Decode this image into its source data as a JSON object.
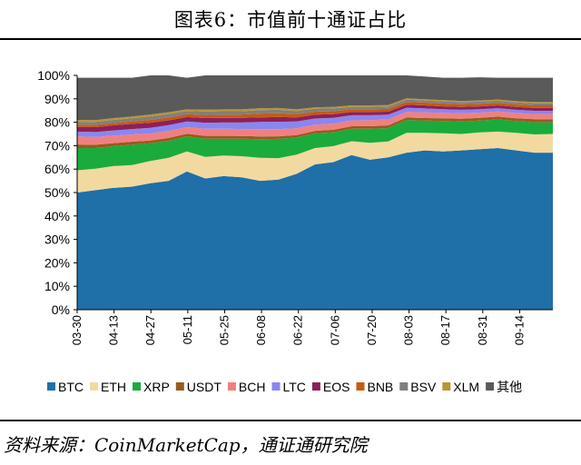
{
  "title": "图表6：市值前十通证占比",
  "source": "资料来源：CoinMarketCap，通证通研究院",
  "chart_data": {
    "type": "area",
    "stacked": true,
    "y_format": "percent",
    "ylim": [
      0,
      100
    ],
    "y_ticks": [
      0,
      10,
      20,
      30,
      40,
      50,
      60,
      70,
      80,
      90,
      100
    ],
    "y_tick_labels": [
      "0%",
      "10%",
      "20%",
      "30%",
      "40%",
      "50%",
      "60%",
      "70%",
      "80%",
      "90%",
      "100%"
    ],
    "x_tick_labels": [
      "03-30",
      "04-13",
      "04-27",
      "05-11",
      "05-25",
      "06-08",
      "06-22",
      "07-06",
      "07-20",
      "08-03",
      "08-17",
      "08-31",
      "09-14"
    ],
    "x_tick_index": [
      0,
      1,
      2,
      3,
      4,
      5,
      6,
      7,
      8,
      9,
      10,
      11,
      12
    ],
    "x_extra_after_last": 0.9,
    "legend_position": "bottom",
    "x": [
      "03-30",
      "04-06",
      "04-13",
      "04-20",
      "04-27",
      "05-04",
      "05-11",
      "05-18",
      "05-25",
      "06-01",
      "06-08",
      "06-15",
      "06-22",
      "06-29",
      "07-06",
      "07-13",
      "07-20",
      "07-27",
      "08-03",
      "08-10",
      "08-17",
      "08-24",
      "08-31",
      "09-07",
      "09-14",
      "09-21",
      "09-27"
    ],
    "series": [
      {
        "name": "BTC",
        "color": "#1f6fa8",
        "values": [
          50,
          51,
          52,
          52.5,
          54,
          55,
          59,
          56,
          57,
          56.5,
          55,
          55.5,
          58,
          62,
          63,
          66,
          64,
          65,
          67,
          68,
          67.5,
          68,
          68.5,
          69,
          68,
          67,
          67
        ]
      },
      {
        "name": "ETH",
        "color": "#f2d9a0",
        "values": [
          9.5,
          9.2,
          9.3,
          9.2,
          9.5,
          9.8,
          8.5,
          9.2,
          8.8,
          9.0,
          9.8,
          9.2,
          8.2,
          7.0,
          6.8,
          5.9,
          7.2,
          6.8,
          8.5,
          7.5,
          7.8,
          7.0,
          7.2,
          7.0,
          7.5,
          7.8,
          8.0
        ]
      },
      {
        "name": "XRP",
        "color": "#1aab3c",
        "values": [
          9.5,
          8.8,
          8.5,
          8.7,
          7.5,
          7.3,
          6.5,
          7.8,
          7.2,
          7.5,
          8.0,
          8.2,
          7.3,
          6.3,
          5.9,
          5.3,
          6.0,
          5.7,
          5.5,
          5.2,
          5.3,
          5.3,
          5.0,
          5.2,
          5.0,
          5.2,
          5.0
        ]
      },
      {
        "name": "USDT",
        "color": "#9a5a1c",
        "values": [
          1.5,
          1.4,
          1.3,
          1.3,
          1.2,
          1.2,
          1.1,
          1.2,
          1.2,
          1.1,
          1.1,
          1.1,
          1.0,
          1.0,
          1.1,
          1.1,
          1.1,
          1.2,
          1.0,
          1.1,
          1.1,
          1.2,
          1.2,
          1.2,
          1.2,
          1.3,
          1.3
        ]
      },
      {
        "name": "BCH",
        "color": "#f08080",
        "values": [
          3.5,
          3.3,
          3.2,
          3.1,
          3.0,
          3.0,
          2.8,
          3.0,
          3.0,
          3.0,
          3.1,
          3.1,
          2.9,
          2.7,
          2.6,
          2.5,
          2.6,
          2.5,
          2.4,
          2.4,
          2.3,
          2.3,
          2.2,
          2.2,
          2.2,
          2.2,
          2.2
        ]
      },
      {
        "name": "LTC",
        "color": "#8a86f0",
        "values": [
          2.0,
          2.1,
          2.2,
          2.3,
          2.4,
          2.5,
          2.4,
          2.6,
          2.7,
          2.8,
          3.1,
          3.1,
          2.9,
          2.6,
          2.5,
          2.2,
          2.1,
          2.0,
          1.8,
          1.7,
          1.6,
          1.5,
          1.5,
          1.4,
          1.4,
          1.4,
          1.4
        ]
      },
      {
        "name": "EOS",
        "color": "#8e1f5a",
        "values": [
          2.0,
          2.1,
          2.2,
          2.2,
          2.2,
          2.0,
          1.9,
          2.0,
          2.0,
          2.0,
          2.0,
          2.0,
          1.8,
          1.6,
          1.5,
          1.4,
          1.4,
          1.3,
          1.3,
          1.3,
          1.2,
          1.2,
          1.2,
          1.2,
          1.2,
          1.2,
          1.2
        ]
      },
      {
        "name": "BNB",
        "color": "#c55a11",
        "values": [
          1.0,
          1.0,
          1.0,
          1.1,
          1.2,
          1.2,
          1.2,
          1.3,
          1.3,
          1.4,
          1.6,
          1.6,
          1.4,
          1.3,
          1.3,
          1.2,
          1.2,
          1.2,
          1.2,
          1.2,
          1.2,
          1.2,
          1.1,
          1.1,
          1.1,
          1.1,
          1.1
        ]
      },
      {
        "name": "BSV",
        "color": "#7f7f7f",
        "values": [
          1.2,
          1.2,
          1.3,
          1.3,
          1.5,
          1.5,
          1.4,
          1.5,
          1.5,
          1.4,
          1.5,
          1.5,
          1.3,
          1.3,
          1.2,
          1.0,
          1.0,
          1.0,
          1.0,
          0.9,
          0.9,
          0.9,
          0.9,
          0.9,
          0.9,
          0.9,
          0.9
        ]
      },
      {
        "name": "XLM",
        "color": "#b8962e",
        "values": [
          0.8,
          0.8,
          0.8,
          0.8,
          0.8,
          0.8,
          0.7,
          0.8,
          0.8,
          0.8,
          0.8,
          0.8,
          0.7,
          0.6,
          0.6,
          0.6,
          0.6,
          0.6,
          0.5,
          0.5,
          0.5,
          0.5,
          0.5,
          0.5,
          0.5,
          0.5,
          0.5
        ]
      },
      {
        "name": "其他",
        "color": "#5a5a5a",
        "values": [
          18.0,
          18.1,
          17.2,
          16.5,
          16.7,
          15.7,
          13.5,
          14.6,
          14.5,
          14.5,
          14.0,
          13.9,
          14.5,
          13.6,
          13.5,
          12.8,
          12.8,
          12.7,
          9.8,
          9.7,
          9.6,
          9.9,
          9.9,
          9.3,
          10.0,
          10.4,
          10.4
        ]
      }
    ]
  }
}
